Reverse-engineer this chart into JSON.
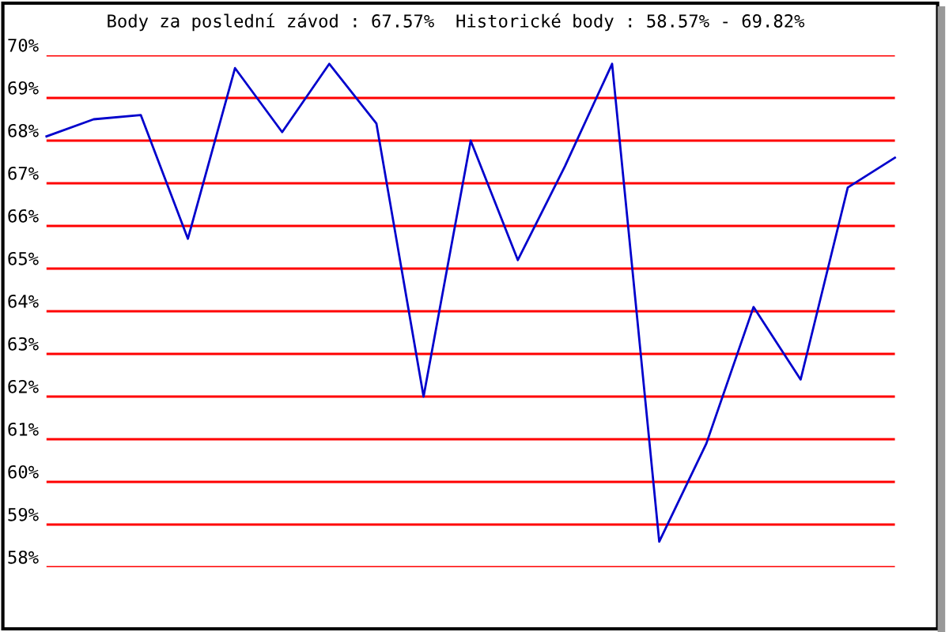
{
  "chart_data": {
    "type": "line",
    "title": "Body za poslední závod : 67.57%  Historické body : 58.57% - 69.82%",
    "categories": [
      null,
      null,
      null,
      null,
      null,
      null,
      null,
      null,
      null,
      null,
      null,
      null,
      null,
      null,
      null,
      null,
      null,
      null,
      null
    ],
    "series": [
      {
        "color": "#0000cc",
        "values": [
          68.1,
          68.5,
          68.6,
          65.7,
          69.7,
          68.2,
          69.8,
          68.4,
          62.0,
          68.0,
          65.2,
          67.4,
          69.8,
          58.6,
          60.9,
          64.1,
          62.4,
          66.9,
          67.6
        ]
      }
    ],
    "ylim": [
      58,
      70
    ],
    "yticks": [
      {
        "value": 58,
        "label": "58%"
      },
      {
        "value": 59,
        "label": "59%"
      },
      {
        "value": 60,
        "label": "60%"
      },
      {
        "value": 61,
        "label": "61%"
      },
      {
        "value": 62,
        "label": "62%"
      },
      {
        "value": 63,
        "label": "63%"
      },
      {
        "value": 64,
        "label": "64%"
      },
      {
        "value": 65,
        "label": "65%"
      },
      {
        "value": 66,
        "label": "66%"
      },
      {
        "value": 67,
        "label": "67%"
      },
      {
        "value": 68,
        "label": "68%"
      },
      {
        "value": 69,
        "label": "69%"
      },
      {
        "value": 70,
        "label": "70%"
      }
    ],
    "grid": "y",
    "tick_labels": "y",
    "marker": "none",
    "line_style": "solid"
  }
}
